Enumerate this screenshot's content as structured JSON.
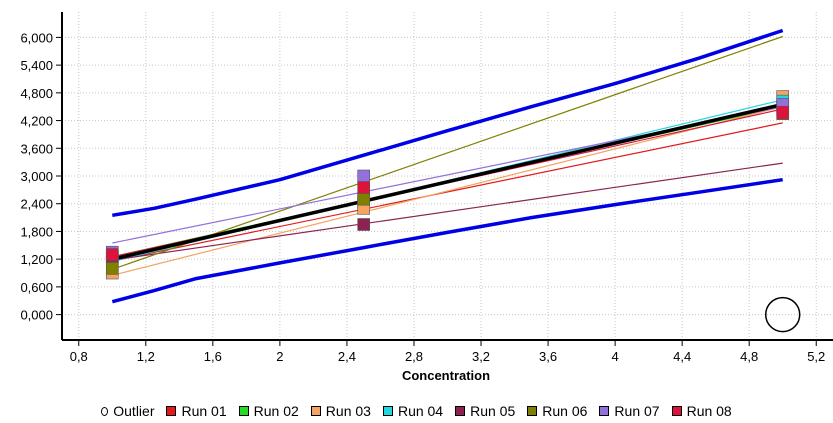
{
  "chart_data": {
    "type": "line",
    "title": "",
    "xlabel": "Concentration",
    "ylabel": "",
    "xlim": [
      0.7,
      5.3
    ],
    "ylim": [
      -0.55,
      6.55
    ],
    "x_ticks": [
      0.8,
      1.2,
      1.6,
      2,
      2.4,
      2.8,
      3.2,
      3.6,
      4,
      4.4,
      4.8,
      5.2
    ],
    "x_tick_labels": [
      "0,8",
      "1,2",
      "1,6",
      "2",
      "2,4",
      "2,8",
      "3,2",
      "3,6",
      "4",
      "4,4",
      "4,8",
      "5,2"
    ],
    "y_ticks": [
      0,
      0.6,
      1.2,
      1.8,
      2.4,
      3.0,
      3.6,
      4.2,
      4.8,
      5.4,
      6.0
    ],
    "y_tick_labels": [
      "0,000",
      "0,600",
      "1,200",
      "1,800",
      "2,400",
      "3,000",
      "3,600",
      "4,200",
      "4,800",
      "5,400",
      "6,000"
    ],
    "grid": true,
    "legend_position": "bottom",
    "series": [
      {
        "name": "Run 01",
        "color": "#e31a1c",
        "fit": [
          [
            1,
            1.16
          ],
          [
            5,
            4.15
          ]
        ],
        "points": [
          [
            1,
            1.25
          ],
          [
            2.5,
            2.45
          ],
          [
            5,
            4.35
          ]
        ]
      },
      {
        "name": "Run 02",
        "color": "#22dd22",
        "fit": [
          [
            1,
            1.25
          ],
          [
            5,
            4.5
          ]
        ],
        "points": [
          [
            1,
            1.2
          ],
          [
            2.5,
            2.4
          ],
          [
            5,
            4.5
          ]
        ]
      },
      {
        "name": "Run 03",
        "color": "#f4a460",
        "fit": [
          [
            1,
            0.85
          ],
          [
            5,
            4.5
          ]
        ],
        "points": [
          [
            1,
            0.9
          ],
          [
            2.5,
            2.3
          ],
          [
            5,
            4.72
          ]
        ]
      },
      {
        "name": "Run 04",
        "color": "#20d8e0",
        "fit": [
          [
            1,
            1.15
          ],
          [
            5,
            4.65
          ]
        ],
        "points": [
          [
            1,
            1.15
          ],
          [
            2.5,
            2.5
          ],
          [
            5,
            4.62
          ]
        ]
      },
      {
        "name": "Run 05",
        "color": "#8b2252",
        "fit": [
          [
            1,
            1.18
          ],
          [
            5,
            3.28
          ]
        ],
        "points": [
          [
            1,
            1.25
          ],
          [
            2.5,
            1.95
          ],
          [
            5,
            4.45
          ]
        ]
      },
      {
        "name": "Run 06",
        "color": "#808000",
        "fit": [
          [
            1,
            0.98
          ],
          [
            5,
            6.02
          ]
        ],
        "points": [
          [
            1,
            1.0
          ],
          [
            2.5,
            2.5
          ],
          [
            5,
            4.5
          ]
        ]
      },
      {
        "name": "Run 07",
        "color": "#9370db",
        "fit": [
          [
            1,
            1.55
          ],
          [
            5,
            4.5
          ]
        ],
        "points": [
          [
            1,
            1.35
          ],
          [
            2.5,
            3.0
          ],
          [
            5,
            4.55
          ]
        ]
      },
      {
        "name": "Run 08",
        "color": "#dc143c",
        "fit": [
          [
            1,
            1.25
          ],
          [
            5,
            4.45
          ]
        ],
        "points": [
          [
            1,
            1.3
          ],
          [
            2.5,
            2.75
          ],
          [
            5,
            4.38
          ]
        ]
      }
    ],
    "mean_fit": {
      "color": "#000000",
      "points": [
        [
          1,
          1.2
        ],
        [
          5,
          4.55
        ]
      ]
    },
    "upper_band": {
      "color": "#0000e6",
      "points": [
        [
          1,
          2.15
        ],
        [
          1.25,
          2.3
        ],
        [
          1.5,
          2.5
        ],
        [
          2,
          2.92
        ],
        [
          2.5,
          3.45
        ],
        [
          3,
          3.98
        ],
        [
          3.5,
          4.5
        ],
        [
          4,
          5.0
        ],
        [
          4.5,
          5.55
        ],
        [
          5,
          6.15
        ]
      ]
    },
    "lower_band": {
      "color": "#0000e6",
      "points": [
        [
          1,
          0.28
        ],
        [
          1.25,
          0.52
        ],
        [
          1.5,
          0.78
        ],
        [
          2,
          1.12
        ],
        [
          2.5,
          1.45
        ],
        [
          3,
          1.78
        ],
        [
          3.5,
          2.1
        ],
        [
          4,
          2.38
        ],
        [
          4.5,
          2.65
        ],
        [
          5,
          2.92
        ]
      ]
    },
    "outlier": {
      "name": "Outlier",
      "x": 5,
      "y": 0
    }
  }
}
